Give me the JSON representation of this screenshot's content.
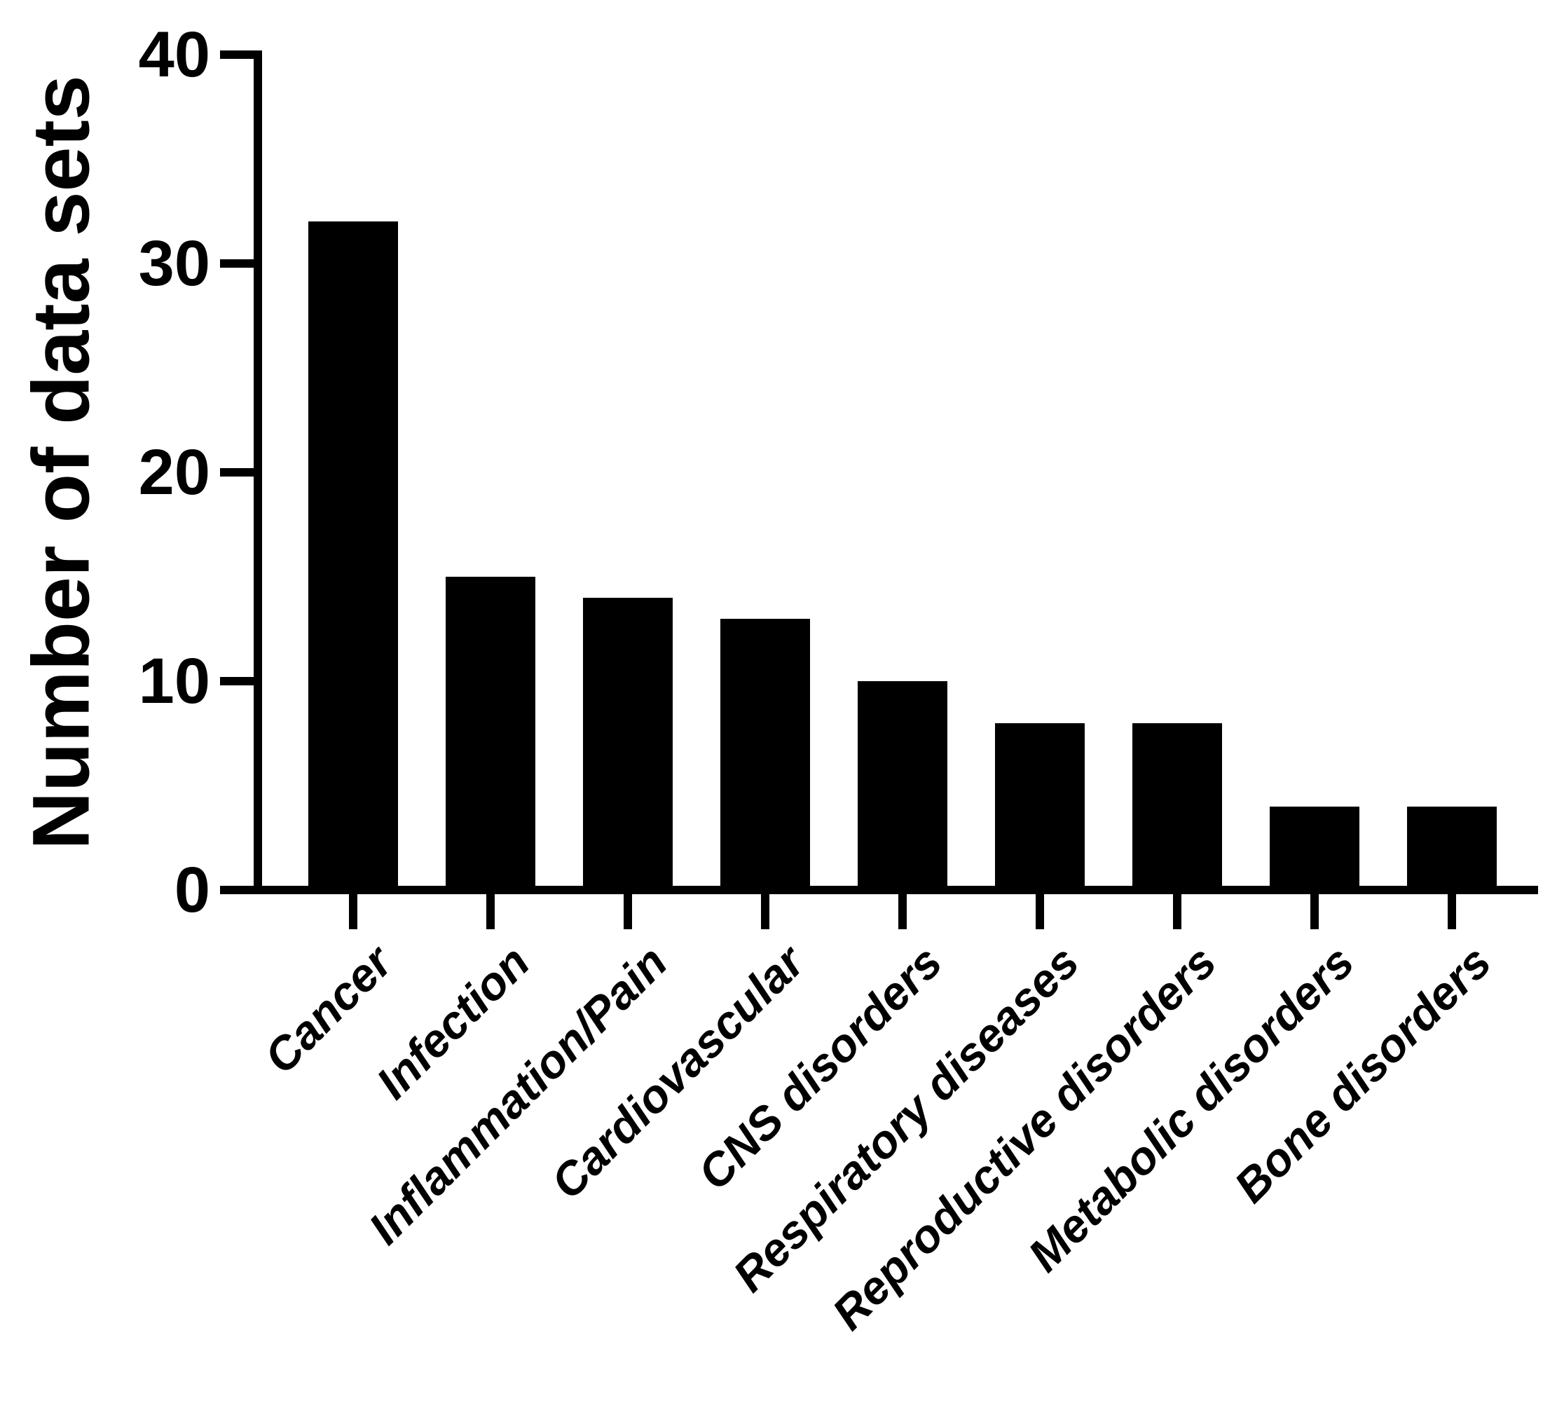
{
  "chart_data": {
    "type": "bar",
    "title": "",
    "xlabel": "",
    "ylabel": "Number of data sets",
    "categories": [
      "Cancer",
      "Infection",
      "Inflammation/Pain",
      "Cardiovascular",
      "CNS disorders",
      "Respiratory diseases",
      "Reproductive disorders",
      "Metabolic disorders",
      "Bone disorders"
    ],
    "values": [
      32,
      15,
      14,
      13,
      10,
      8,
      8,
      4,
      4
    ],
    "ylim": [
      0,
      40
    ],
    "yticks": [
      0,
      10,
      20,
      30,
      40
    ],
    "bar_color": "#000000",
    "axis_color": "#000000",
    "background": "#ffffff",
    "grid": "off",
    "legend": "none"
  }
}
